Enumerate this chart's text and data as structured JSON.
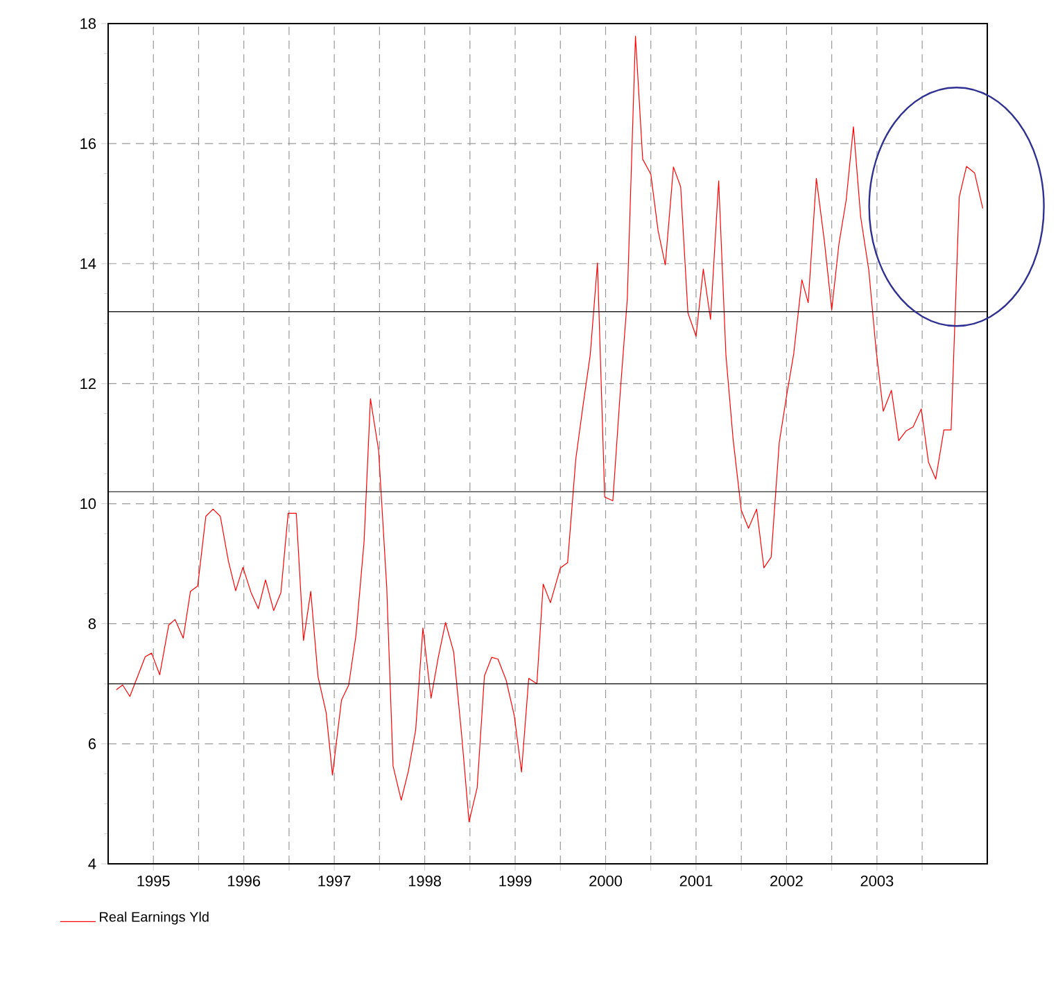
{
  "chart_data": {
    "type": "line",
    "xlim": [
      1995,
      2004.72
    ],
    "ylim": [
      4,
      18
    ],
    "yticks": [
      4,
      6,
      8,
      10,
      12,
      14,
      16,
      18
    ],
    "xticks": [
      {
        "value": 1995.5,
        "label": "1995"
      },
      {
        "value": 1996.5,
        "label": "1996"
      },
      {
        "value": 1997.5,
        "label": "1997"
      },
      {
        "value": 1998.5,
        "label": "1998"
      },
      {
        "value": 1999.5,
        "label": "1999"
      },
      {
        "value": 2000.5,
        "label": "2000"
      },
      {
        "value": 2001.5,
        "label": "2001"
      },
      {
        "value": 2002.5,
        "label": "2002"
      },
      {
        "value": 2003.5,
        "label": "2003"
      },
      {
        "value": 1996,
        "label": null
      },
      {
        "value": 1997,
        "label": null
      },
      {
        "value": 1998,
        "label": null
      },
      {
        "value": 1999,
        "label": null
      },
      {
        "value": 2000,
        "label": null
      },
      {
        "value": 2001,
        "label": null
      },
      {
        "value": 2002,
        "label": null
      },
      {
        "value": 2003,
        "label": null
      },
      {
        "value": 2004,
        "label": null
      }
    ],
    "grid": true,
    "legend": "bottom left",
    "marker": "none",
    "line_style": "solid",
    "ref_lines": [
      {
        "axis": "y",
        "value": 13.2,
        "color": "#000000"
      },
      {
        "axis": "y",
        "value": 10.2,
        "color": "#000000"
      },
      {
        "axis": "y",
        "value": 7.0,
        "color": "#000000"
      }
    ],
    "series": [
      {
        "name": "Real Earnings Yld",
        "color": "#ff0000",
        "x": [
          1995.09,
          1995.16,
          1995.24,
          1995.41,
          1995.48,
          1995.57,
          1995.67,
          1995.74,
          1995.83,
          1995.91,
          1995.99,
          1996.08,
          1996.16,
          1996.24,
          1996.33,
          1996.41,
          1996.49,
          1996.58,
          1996.66,
          1996.74,
          1996.83,
          1996.91,
          1996.99,
          1997.08,
          1997.16,
          1997.24,
          1997.32,
          1997.41,
          1997.48,
          1997.58,
          1997.66,
          1997.74,
          1997.83,
          1997.9,
          1997.99,
          1998.08,
          1998.15,
          1998.24,
          1998.32,
          1998.4,
          1998.48,
          1998.57,
          1998.65,
          1998.73,
          1998.82,
          1998.91,
          1998.99,
          1999.08,
          1999.16,
          1999.24,
          1999.31,
          1999.4,
          1999.49,
          1999.57,
          1999.65,
          1999.74,
          1999.81,
          1999.89,
          2000.0,
          2000.08,
          2000.17,
          2000.25,
          2000.33,
          2000.41,
          2000.49,
          2000.58,
          2000.66,
          2000.74,
          2000.83,
          2000.91,
          2001.0,
          2001.08,
          2001.16,
          2001.25,
          2001.33,
          2001.41,
          2001.5,
          2001.58,
          2001.66,
          2001.75,
          2001.83,
          2001.91,
          2002.0,
          2002.08,
          2002.17,
          2002.25,
          2002.33,
          2002.42,
          2002.5,
          2002.58,
          2002.67,
          2002.74,
          2002.83,
          2002.92,
          2003.0,
          2003.08,
          2003.16,
          2003.24,
          2003.32,
          2003.41,
          2003.49,
          2003.57,
          2003.66,
          2003.74,
          2003.82,
          2003.9,
          2003.99,
          2004.07,
          2004.15,
          2004.24,
          2004.32,
          2004.41,
          2004.49,
          2004.58,
          2004.67
        ],
        "values": [
          6.9,
          6.98,
          6.79,
          7.45,
          7.51,
          7.15,
          7.98,
          8.07,
          7.76,
          8.54,
          8.63,
          9.79,
          9.91,
          9.79,
          9.04,
          8.55,
          8.94,
          8.52,
          8.25,
          8.73,
          8.22,
          8.52,
          9.84,
          9.84,
          7.72,
          8.54,
          7.12,
          6.52,
          5.48,
          6.73,
          6.98,
          7.81,
          9.38,
          11.75,
          10.89,
          8.61,
          5.63,
          5.06,
          5.55,
          6.23,
          7.93,
          6.76,
          7.44,
          8.02,
          7.53,
          6.12,
          4.7,
          5.27,
          7.13,
          7.44,
          7.41,
          7.06,
          6.47,
          5.53,
          7.09,
          7.0,
          8.66,
          8.35,
          8.93,
          9.02,
          10.74,
          11.63,
          12.48,
          14.01,
          10.11,
          10.05,
          11.82,
          13.42,
          17.79,
          15.74,
          15.49,
          14.55,
          13.98,
          15.61,
          15.28,
          13.18,
          12.79,
          13.91,
          13.07,
          15.38,
          12.48,
          11.07,
          9.89,
          9.59,
          9.91,
          8.93,
          9.11,
          11.02,
          11.79,
          12.5,
          13.73,
          13.35,
          15.42,
          14.36,
          13.23,
          14.33,
          15.06,
          16.28,
          14.78,
          13.89,
          12.57,
          11.54,
          11.89,
          11.05,
          11.21,
          11.28,
          11.58,
          10.69,
          10.41,
          11.23,
          11.23,
          15.11,
          15.62,
          15.51,
          14.92
        ]
      }
    ]
  }
}
